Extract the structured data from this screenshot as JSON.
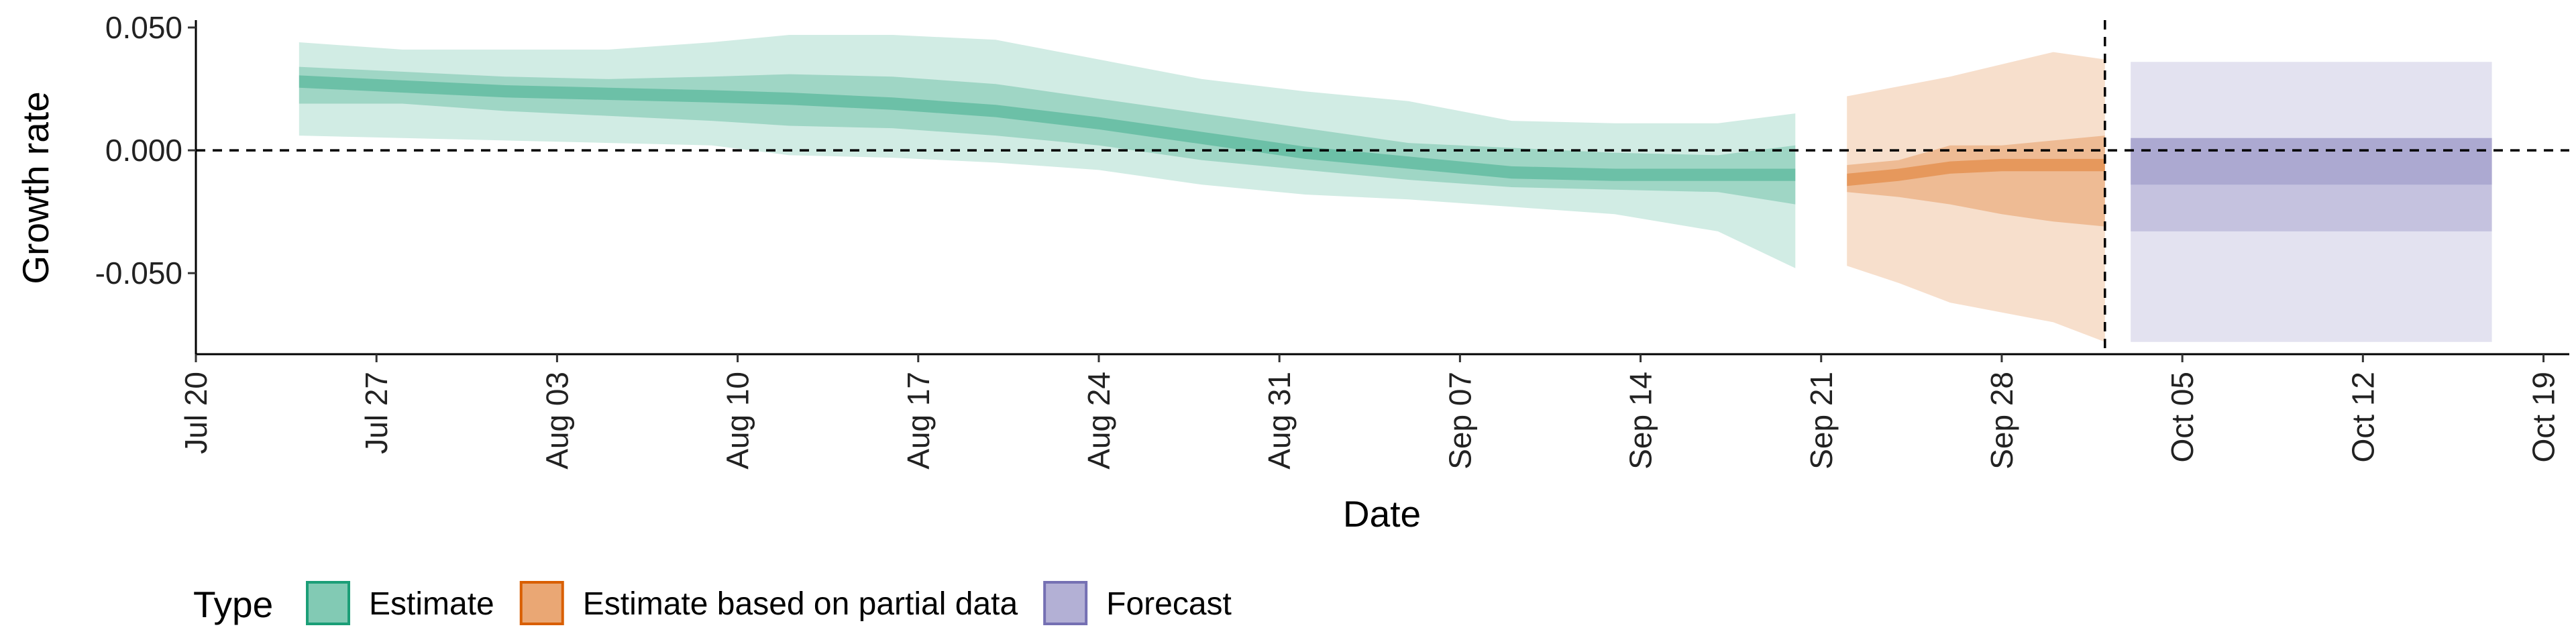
{
  "chart_data": {
    "type": "area",
    "xlabel": "Date",
    "ylabel": "Growth rate",
    "xlim": [
      "2020-07-20",
      "2020-10-20"
    ],
    "ylim": [
      -0.083,
      0.053
    ],
    "x_ticks": [
      "Jul 20",
      "Jul 27",
      "Aug 03",
      "Aug 10",
      "Aug 17",
      "Aug 24",
      "Aug 31",
      "Sep 07",
      "Sep 14",
      "Sep 21",
      "Sep 28",
      "Oct 05",
      "Oct 12",
      "Oct 19"
    ],
    "x_tick_dates": [
      "2020-07-20",
      "2020-07-27",
      "2020-08-03",
      "2020-08-10",
      "2020-08-17",
      "2020-08-24",
      "2020-08-31",
      "2020-09-07",
      "2020-09-14",
      "2020-09-21",
      "2020-09-28",
      "2020-10-05",
      "2020-10-12",
      "2020-10-19"
    ],
    "y_ticks": [
      0.05,
      0.0,
      -0.05
    ],
    "y_tick_labels": [
      "0.050",
      "0.000",
      "-0.050"
    ],
    "reference_lines": {
      "horizontal_y": 0.0,
      "vertical_date": "2020-10-02",
      "style": "dashed"
    },
    "grid": false,
    "legend": {
      "title": "Type",
      "placement": "bottom-left",
      "entries": [
        "Estimate",
        "Estimate based on partial data",
        "Forecast"
      ]
    },
    "series": [
      {
        "name": "Estimate",
        "color": "#1b9e77",
        "x": [
          "2020-07-24",
          "2020-07-28",
          "2020-08-01",
          "2020-08-05",
          "2020-08-09",
          "2020-08-12",
          "2020-08-16",
          "2020-08-20",
          "2020-08-24",
          "2020-08-28",
          "2020-09-01",
          "2020-09-05",
          "2020-09-09",
          "2020-09-13",
          "2020-09-17",
          "2020-09-20"
        ],
        "median": [
          0.028,
          0.026,
          0.024,
          0.023,
          0.022,
          0.021,
          0.019,
          0.016,
          0.011,
          0.005,
          -0.001,
          -0.005,
          -0.009,
          -0.01,
          -0.01,
          -0.01
        ],
        "lower_90": [
          0.006,
          0.005,
          0.004,
          0.003,
          0.002,
          -0.002,
          -0.003,
          -0.005,
          -0.008,
          -0.014,
          -0.018,
          -0.02,
          -0.023,
          -0.026,
          -0.033,
          -0.048
        ],
        "upper_90": [
          0.044,
          0.041,
          0.041,
          0.041,
          0.044,
          0.047,
          0.047,
          0.045,
          0.037,
          0.029,
          0.024,
          0.02,
          0.012,
          0.011,
          0.011,
          0.015
        ],
        "lower_50": [
          0.019,
          0.019,
          0.016,
          0.014,
          0.012,
          0.01,
          0.009,
          0.006,
          0.002,
          -0.004,
          -0.008,
          -0.012,
          -0.015,
          -0.016,
          -0.017,
          -0.022
        ],
        "upper_50": [
          0.034,
          0.032,
          0.03,
          0.029,
          0.03,
          0.031,
          0.03,
          0.027,
          0.021,
          0.015,
          0.009,
          0.003,
          0.001,
          -0.001,
          -0.002,
          0.002
        ]
      },
      {
        "name": "Estimate based on partial data",
        "color": "#d95f02",
        "x": [
          "2020-09-22",
          "2020-09-24",
          "2020-09-26",
          "2020-09-28",
          "2020-09-30",
          "2020-10-02"
        ],
        "median": [
          -0.012,
          -0.01,
          -0.007,
          -0.006,
          -0.006,
          -0.006
        ],
        "lower_90": [
          -0.047,
          -0.054,
          -0.062,
          -0.066,
          -0.07,
          -0.078
        ],
        "upper_90": [
          0.022,
          0.026,
          0.03,
          0.035,
          0.04,
          0.037
        ],
        "lower_50": [
          -0.017,
          -0.019,
          -0.022,
          -0.026,
          -0.029,
          -0.031
        ],
        "upper_50": [
          -0.006,
          -0.004,
          0.002,
          0.002,
          0.004,
          0.006
        ]
      },
      {
        "name": "Forecast",
        "color": "#7570b3",
        "x": [
          "2020-10-03",
          "2020-10-17"
        ],
        "median": [
          -0.005,
          -0.005
        ],
        "lower_90": [
          -0.078,
          -0.078
        ],
        "upper_90": [
          0.036,
          0.036
        ],
        "lower_50": [
          -0.033,
          -0.033
        ],
        "upper_50": [
          0.005,
          0.005
        ],
        "lower_20": [
          -0.014,
          -0.014
        ],
        "upper_20": [
          0.005,
          0.005
        ]
      }
    ]
  }
}
